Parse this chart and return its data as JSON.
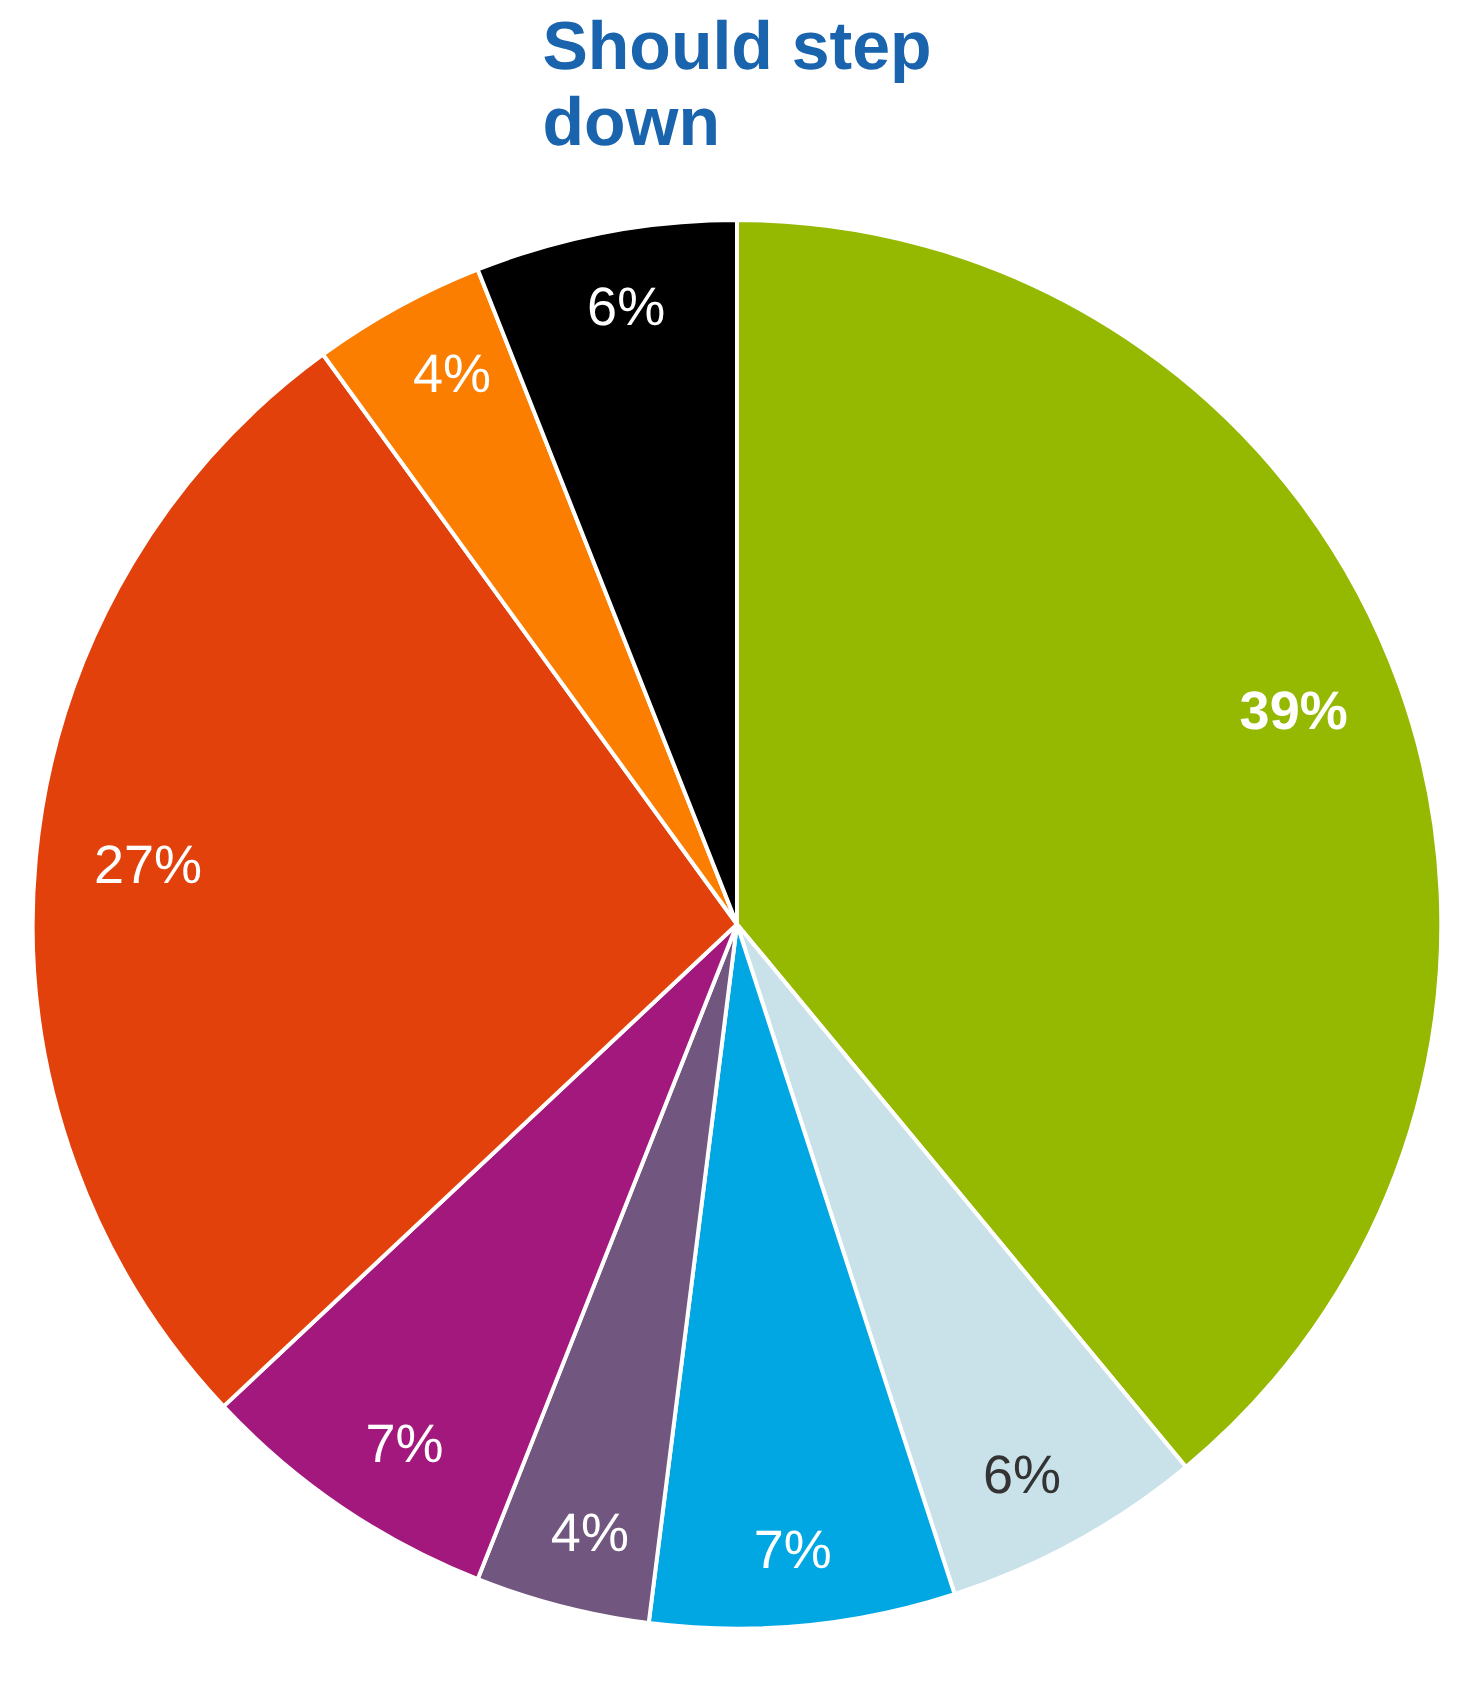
{
  "chart_data": {
    "type": "pie",
    "title": "Should step down",
    "categories": [
      null,
      null,
      null,
      null,
      null,
      null,
      null,
      null
    ],
    "values": [
      39,
      6,
      7,
      4,
      7,
      27,
      4,
      6
    ],
    "colors": [
      "#95b800",
      "#c9e1e8",
      "#00a7e3",
      "#71577f",
      "#a2187d",
      "#e2410c",
      "#fb7e00",
      "#000000"
    ],
    "value_labels": [
      "39%",
      "6%",
      "7%",
      "4%",
      "7%",
      "27%",
      "4%",
      "6%"
    ]
  }
}
